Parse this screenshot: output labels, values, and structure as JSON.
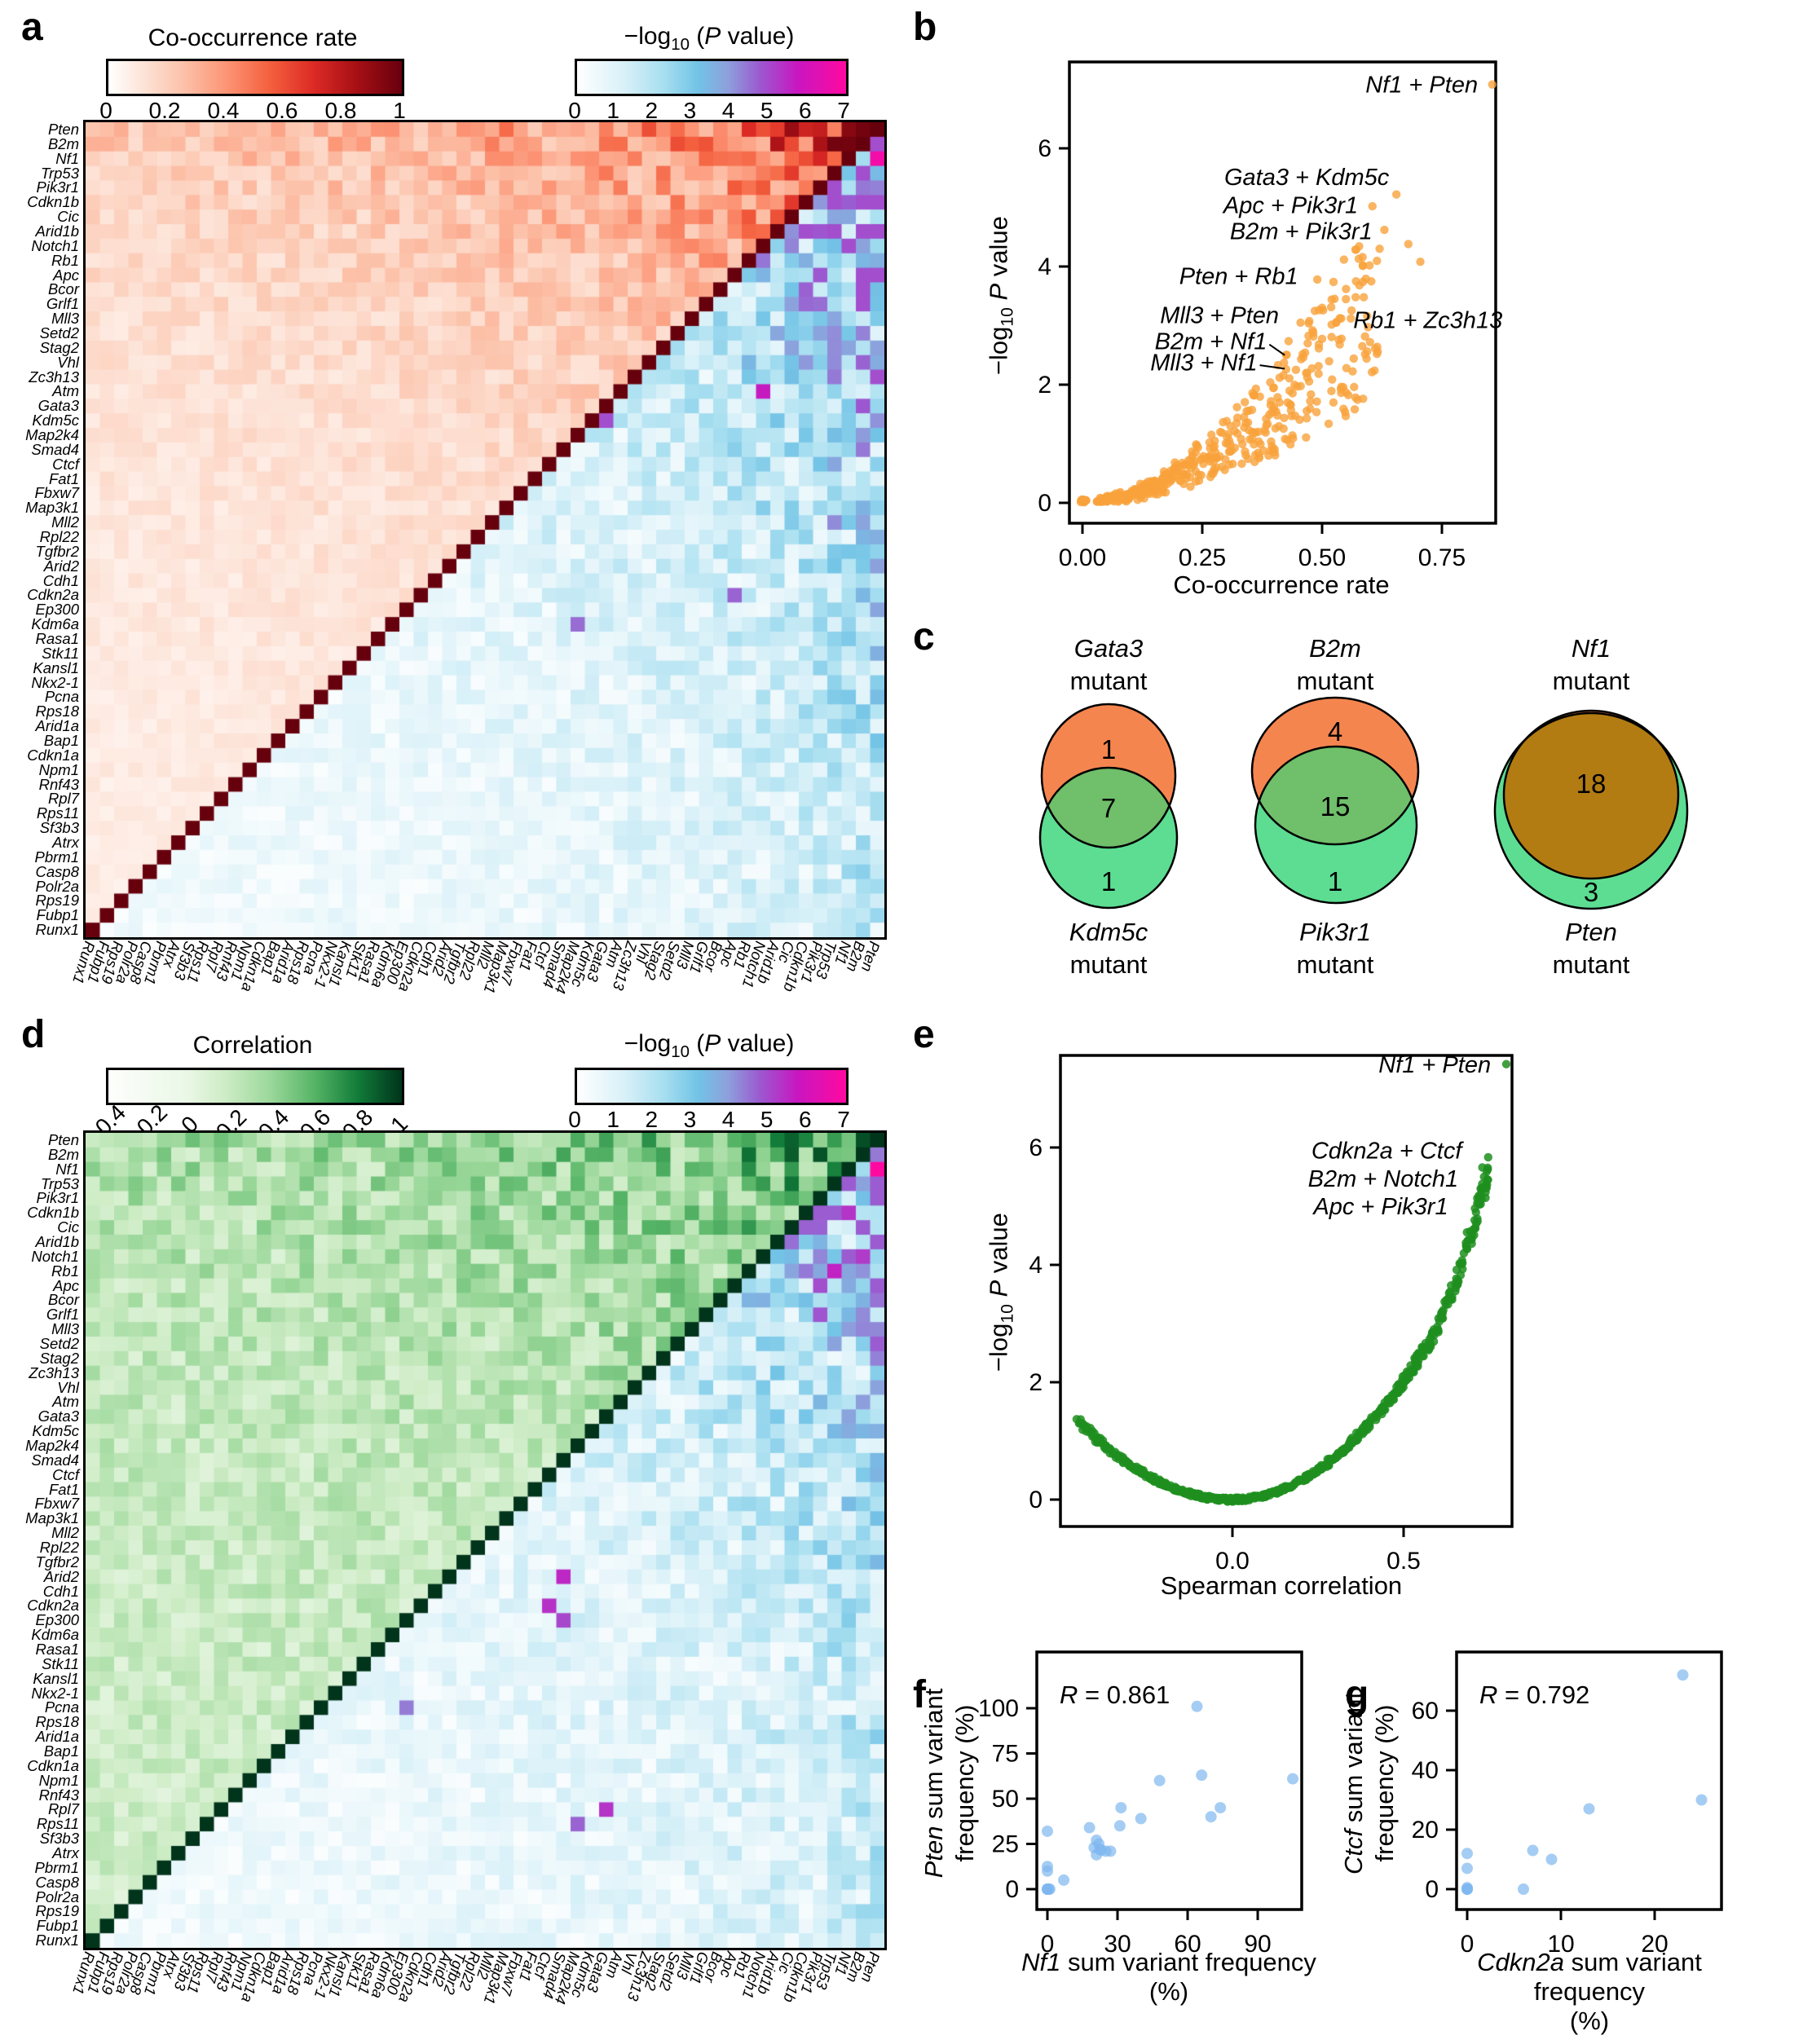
{
  "figure": {
    "panel_letters": {
      "a": "a",
      "b": "b",
      "c": "c",
      "d": "d",
      "e": "e",
      "f": "f",
      "g": "g"
    }
  },
  "colors": {
    "heat_red_scale": [
      [
        0,
        "#ffffff"
      ],
      [
        0.12,
        "#fde3d7"
      ],
      [
        0.25,
        "#fcc3ab"
      ],
      [
        0.4,
        "#fc9576"
      ],
      [
        0.55,
        "#f4603e"
      ],
      [
        0.7,
        "#dc2a25"
      ],
      [
        0.85,
        "#a50f15"
      ],
      [
        1,
        "#67000d"
      ]
    ],
    "heat_green_scale": [
      [
        0,
        "#fdfefc"
      ],
      [
        0.27,
        "#eaf7e6"
      ],
      [
        0.4,
        "#cdecc5"
      ],
      [
        0.55,
        "#9cd89b"
      ],
      [
        0.7,
        "#57b567"
      ],
      [
        0.85,
        "#117c39"
      ],
      [
        1,
        "#00341b"
      ]
    ],
    "heat_p_scale": [
      [
        0,
        "#ffffff"
      ],
      [
        0.18,
        "#d7f0f8"
      ],
      [
        0.32,
        "#a8dff0"
      ],
      [
        0.45,
        "#72c3e6"
      ],
      [
        0.56,
        "#8da0dc"
      ],
      [
        0.68,
        "#9b59d0"
      ],
      [
        0.82,
        "#c916c0"
      ],
      [
        1,
        "#ff09a0"
      ]
    ],
    "diag_a": "#67000d",
    "diag_d": "#00341b",
    "orange_point": "#F9A23C",
    "green_point": "#1F8F1F",
    "blue_point": "#7FB8EF",
    "venn_orange": "#F5854F",
    "venn_green": "#5CDD92",
    "venn_overlap_green": "#70BF6B",
    "venn_overlap_brown": "#B27C12"
  },
  "chart_data": {
    "a": {
      "type": "heatmap",
      "description": "Pairwise gene co-occurrence rate (upper-left triangle, red) and -log10 P value (lower-right triangle, blue-magenta); diagonal dark red. Cell values procedurally approximated.",
      "legend1": {
        "title": "Co-occurrence rate",
        "ticks": [
          "0",
          "0.2",
          "0.4",
          "0.6",
          "0.8",
          "1"
        ]
      },
      "legend2": {
        "title_pre": "−log",
        "title_sub": "10",
        "title_mid": " (",
        "title_p": "P",
        "title_post": " value)",
        "ticks": [
          "0",
          "1",
          "2",
          "3",
          "4",
          "5",
          "6",
          "7"
        ]
      },
      "genes_y": [
        "Pten",
        "B2m",
        "Nf1",
        "Trp53",
        "Pik3r1",
        "Cdkn1b",
        "Cic",
        "Arid1b",
        "Notch1",
        "Rb1",
        "Apc",
        "Bcor",
        "Grlf1",
        "Mll3",
        "Setd2",
        "Stag2",
        "Vhl",
        "Zc3h13",
        "Atm",
        "Gata3",
        "Kdm5c",
        "Map2k4",
        "Smad4",
        "Ctcf",
        "Fat1",
        "Fbxw7",
        "Map3k1",
        "Mll2",
        "Rpl22",
        "Tgfbr2",
        "Arid2",
        "Cdh1",
        "Cdkn2a",
        "Ep300",
        "Kdm6a",
        "Rasa1",
        "Stk11",
        "Kansl1",
        "Nkx2-1",
        "Pcna",
        "Rps18",
        "Arid1a",
        "Bap1",
        "Cdkn1a",
        "Npm1",
        "Rnf43",
        "Rpl7",
        "Rps11",
        "Sf3b3",
        "Atrx",
        "Pbrm1",
        "Casp8",
        "Polr2a",
        "Rps19",
        "Fubp1",
        "Runx1"
      ],
      "x_order": "reverse_of_y",
      "seed": 11,
      "p_hotspots": [
        [
          2,
          0,
          7.1
        ],
        [
          4,
          1,
          4.65
        ],
        [
          9,
          0,
          3.8
        ],
        [
          10,
          4,
          5.05
        ],
        [
          13,
          0,
          3.1
        ],
        [
          13,
          2,
          2.3
        ],
        [
          2,
          1,
          2.45
        ],
        [
          17,
          9,
          3.2
        ],
        [
          20,
          19,
          5.2
        ],
        [
          18,
          8,
          6.0
        ],
        [
          34,
          21,
          4.8
        ],
        [
          27,
          3,
          4.4
        ],
        [
          32,
          10,
          4.9
        ]
      ]
    },
    "d": {
      "type": "heatmap",
      "description": "Pairwise Spearman correlation (upper-left triangle, green) and -log10 P value (lower-right triangle, blue-magenta); diagonal dark green. Cell values procedurally approximated.",
      "legend1": {
        "title": "Correlation",
        "ticks": [
          "−0.4",
          "−0.2",
          "0",
          "0.2",
          "0.4",
          "0.6",
          "0.8",
          "1"
        ]
      },
      "legend2": {
        "title_pre": "−log",
        "title_sub": "10",
        "title_mid": " (",
        "title_p": "P",
        "title_post": " value)",
        "ticks": [
          "0",
          "1",
          "2",
          "3",
          "4",
          "5",
          "6",
          "7"
        ]
      },
      "genes_y": [
        "Pten",
        "B2m",
        "Nf1",
        "Trp53",
        "Pik3r1",
        "Cdkn1b",
        "Cic",
        "Arid1b",
        "Notch1",
        "Rb1",
        "Apc",
        "Bcor",
        "Grlf1",
        "Mll3",
        "Setd2",
        "Stag2",
        "Zc3h13",
        "Vhl",
        "Atm",
        "Gata3",
        "Kdm5c",
        "Map2k4",
        "Smad4",
        "Ctcf",
        "Fat1",
        "Fbxw7",
        "Map3k1",
        "Mll2",
        "Rpl22",
        "Tgfbr2",
        "Arid2",
        "Cdh1",
        "Cdkn2a",
        "Ep300",
        "Kdm6a",
        "Rasa1",
        "Stk11",
        "Kansl1",
        "Nkx2-1",
        "Pcna",
        "Rps18",
        "Arid1a",
        "Bap1",
        "Cdkn1a",
        "Npm1",
        "Rnf43",
        "Rpl7",
        "Rps11",
        "Sf3b3",
        "Atrx",
        "Pbrm1",
        "Casp8",
        "Polr2a",
        "Rps19",
        "Fubp1",
        "Runx1"
      ],
      "x_order": "reverse_of_y",
      "seed": 29,
      "p_hotspots": [
        [
          2,
          0,
          7.4
        ],
        [
          32,
          23,
          5.65
        ],
        [
          8,
          1,
          5.5
        ],
        [
          10,
          4,
          5.2
        ],
        [
          5,
          2,
          5.6
        ],
        [
          9,
          3,
          5.9
        ],
        [
          12,
          4,
          5.1
        ],
        [
          30,
          22,
          5.8
        ],
        [
          33,
          22,
          5.3
        ],
        [
          46,
          19,
          5.6
        ],
        [
          47,
          21,
          4.9
        ],
        [
          39,
          33,
          4.6
        ]
      ]
    },
    "b": {
      "type": "scatter",
      "xlabel": "Co-occurrence rate",
      "ylabel_parts": {
        "pre": "−log",
        "sub": "10",
        "sp": " ",
        "p": "P",
        "post": " value"
      },
      "x_ticks": [
        [
          0,
          "0.00"
        ],
        [
          0.25,
          "0.25"
        ],
        [
          0.5,
          "0.50"
        ],
        [
          0.75,
          "0.75"
        ]
      ],
      "y_ticks": [
        [
          0,
          "0"
        ],
        [
          2,
          "2"
        ],
        [
          4,
          "4"
        ],
        [
          6,
          "6"
        ]
      ],
      "generator": {
        "n": 430,
        "seed": 5,
        "x_min": 0.03,
        "x_max": 0.62,
        "coef": 8.0,
        "pow": 1.75,
        "y_cap": 4.45,
        "origin_cluster": 12
      },
      "extra_points": [
        [
          0.855,
          7.08
        ],
        [
          0.655,
          5.22
        ],
        [
          0.605,
          5.02
        ],
        [
          0.63,
          4.62
        ],
        [
          0.68,
          4.38
        ],
        [
          0.705,
          4.08
        ],
        [
          0.62,
          4.3
        ],
        [
          0.585,
          4.02
        ],
        [
          0.55,
          3.62
        ],
        [
          0.57,
          3.48
        ],
        [
          0.52,
          3.44
        ],
        [
          0.5,
          3.3
        ],
        [
          0.53,
          3.06
        ],
        [
          0.56,
          3.12
        ],
        [
          0.6,
          2.72
        ],
        [
          0.615,
          2.64
        ],
        [
          0.49,
          3.78
        ],
        [
          0.54,
          3.12
        ],
        [
          0.455,
          3.05
        ],
        [
          0.425,
          2.5
        ],
        [
          0.425,
          2.26
        ],
        [
          0.47,
          2.7
        ],
        [
          0.48,
          2.92
        ]
      ],
      "labels": [
        {
          "text": "Nf1 + Pten",
          "x": 0.825,
          "y": 7.08,
          "anchor": "end"
        },
        {
          "text": "Gata3 + Kdm5c",
          "x": 0.64,
          "y": 5.52,
          "anchor": "end"
        },
        {
          "text": "Apc + Pik3r1",
          "x": 0.575,
          "y": 5.04,
          "anchor": "end"
        },
        {
          "text": "B2m + Pik3r1",
          "x": 0.605,
          "y": 4.6,
          "anchor": "end"
        },
        {
          "text": "Pten + Rb1",
          "x": 0.45,
          "y": 3.84,
          "anchor": "end"
        },
        {
          "text": "Mll3 + Pten",
          "x": 0.41,
          "y": 3.18,
          "anchor": "end"
        },
        {
          "text": "B2m + Nf1",
          "x": 0.385,
          "y": 2.74,
          "anchor": "end"
        },
        {
          "text": "Mll3 + Nf1",
          "x": 0.365,
          "y": 2.38,
          "anchor": "end"
        },
        {
          "text": "Rb1 + Zc3h13",
          "x": 0.565,
          "y": 3.1,
          "anchor": "start"
        }
      ],
      "leader_lines": [
        [
          0.39,
          2.68,
          0.422,
          2.5
        ],
        [
          0.37,
          2.33,
          0.422,
          2.27
        ]
      ]
    },
    "c": {
      "type": "venn",
      "items": [
        {
          "top_gene": "Gata3",
          "top_word": "mutant",
          "bottom_gene": "Kdm5c",
          "bottom_word": "mutant",
          "counts": [
            "1",
            "7",
            "1"
          ]
        },
        {
          "top_gene": "B2m",
          "top_word": "mutant",
          "bottom_gene": "Pik3r1",
          "bottom_word": "mutant",
          "counts": [
            "4",
            "15",
            "1"
          ]
        },
        {
          "top_gene": "Nf1",
          "top_word": "mutant",
          "bottom_gene": "Pten",
          "bottom_word": "mutant",
          "counts": [
            "18",
            "3"
          ]
        }
      ]
    },
    "e": {
      "type": "scatter",
      "xlabel": "Spearman correlation",
      "ylabel_parts": {
        "pre": "−log",
        "sub": "10",
        "sp": " ",
        "p": "P",
        "post": " value"
      },
      "x_ticks": [
        [
          0,
          "0.0"
        ],
        [
          0.5,
          "0.5"
        ]
      ],
      "y_ticks": [
        [
          0,
          "0"
        ],
        [
          2,
          "2"
        ],
        [
          4,
          "4"
        ],
        [
          6,
          "6"
        ]
      ],
      "generator": {
        "n": 650,
        "seed": 9,
        "x_min": -0.45,
        "x_max": 0.75,
        "coef_neg": 6.6,
        "coef_pos": 8.1,
        "steepen_from": 0.6,
        "steepen": 1.6
      },
      "extra_points": [
        [
          0.8,
          7.42
        ],
        [
          0.73,
          5.66
        ],
        [
          0.735,
          5.5
        ],
        [
          0.72,
          5.18
        ],
        [
          0.725,
          5.3
        ],
        [
          0.715,
          5.05
        ],
        [
          -0.455,
          1.37
        ],
        [
          -0.415,
          1.22
        ],
        [
          -0.403,
          1.13
        ]
      ],
      "labels": [
        {
          "text": "Nf1 + Pten",
          "x": 0.755,
          "y": 7.42,
          "anchor": "end"
        },
        {
          "text": "Cdkn2a + Ctcf",
          "x": 0.67,
          "y": 5.95,
          "anchor": "end"
        },
        {
          "text": "B2m + Notch1",
          "x": 0.66,
          "y": 5.47,
          "anchor": "end"
        },
        {
          "text": "Apc + Pik3r1",
          "x": 0.63,
          "y": 5.0,
          "anchor": "end"
        }
      ],
      "leader_lines": []
    },
    "f": {
      "type": "scatter",
      "annotation": {
        "r_sym": "R",
        "r_rest": " = 0.861"
      },
      "xlabel_parts": {
        "gene": "Nf1",
        "rest": " sum variant frequency",
        "unit": "(%)"
      },
      "ylabel_parts": {
        "gene": "Pten",
        "rest": " sum variant",
        "line2": "frequency (%)"
      },
      "x_ticks": [
        [
          0,
          "0"
        ],
        [
          30,
          "30"
        ],
        [
          60,
          "60"
        ],
        [
          90,
          "90"
        ]
      ],
      "y_ticks": [
        [
          0,
          "0"
        ],
        [
          25,
          "25"
        ],
        [
          50,
          "50"
        ],
        [
          75,
          "75"
        ],
        [
          100,
          "100"
        ]
      ],
      "points": [
        [
          0,
          0
        ],
        [
          0,
          0
        ],
        [
          0,
          0
        ],
        [
          0.5,
          0
        ],
        [
          1,
          0
        ],
        [
          0,
          10
        ],
        [
          0,
          12.5
        ],
        [
          0,
          32
        ],
        [
          7,
          5
        ],
        [
          18,
          34
        ],
        [
          20,
          23
        ],
        [
          21,
          19
        ],
        [
          21,
          27
        ],
        [
          22,
          25
        ],
        [
          22.5,
          22
        ],
        [
          23,
          21.5
        ],
        [
          25,
          21
        ],
        [
          27,
          21
        ],
        [
          31,
          35
        ],
        [
          31.5,
          45
        ],
        [
          40,
          39
        ],
        [
          48,
          60
        ],
        [
          64,
          101
        ],
        [
          66,
          63
        ],
        [
          70,
          40
        ],
        [
          74,
          45
        ],
        [
          105,
          61
        ]
      ]
    },
    "g": {
      "type": "scatter",
      "annotation": {
        "r_sym": "R",
        "r_rest": " = 0.792"
      },
      "xlabel_parts": {
        "gene": "Cdkn2a",
        "rest": " sum variant frequency",
        "unit": "(%)"
      },
      "ylabel_parts": {
        "gene": "Ctcf",
        "rest": " sum variant",
        "line2": "frequency (%)"
      },
      "x_ticks": [
        [
          0,
          "0"
        ],
        [
          10,
          "10"
        ],
        [
          20,
          "20"
        ]
      ],
      "y_ticks": [
        [
          0,
          "0"
        ],
        [
          20,
          "20"
        ],
        [
          40,
          "40"
        ],
        [
          60,
          "60"
        ]
      ],
      "points": [
        [
          0,
          0
        ],
        [
          0,
          0
        ],
        [
          0,
          0
        ],
        [
          0,
          0.5
        ],
        [
          0,
          7
        ],
        [
          0,
          12
        ],
        [
          6,
          0
        ],
        [
          7,
          13
        ],
        [
          9,
          10
        ],
        [
          13,
          27
        ],
        [
          23,
          72
        ],
        [
          25,
          30
        ]
      ]
    }
  }
}
